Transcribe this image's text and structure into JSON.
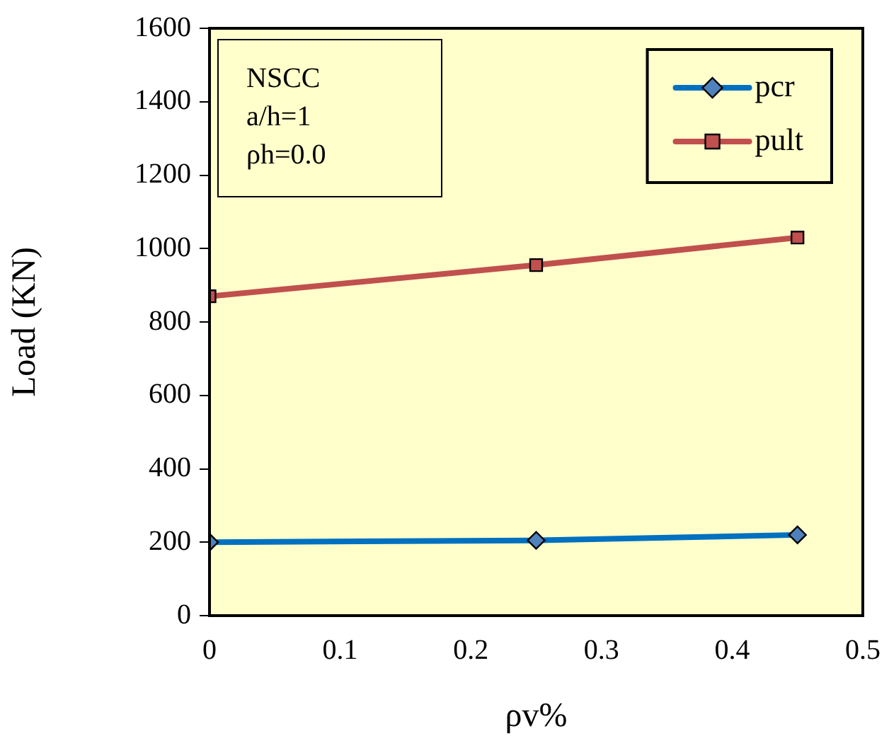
{
  "chart_data": {
    "type": "line",
    "xlabel": "ρv%",
    "ylabel": "Load (KN)",
    "x": [
      0,
      0.25,
      0.45
    ],
    "series": [
      {
        "name": "pcr",
        "color": "#0070c0",
        "marker": "diamond",
        "values": [
          200,
          205,
          220
        ]
      },
      {
        "name": "pult",
        "color": "#c0504d",
        "marker": "square",
        "values": [
          870,
          955,
          1030
        ]
      }
    ],
    "xlim": [
      0,
      0.5
    ],
    "xticks": [
      0,
      0.1,
      0.2,
      0.3,
      0.4,
      0.5
    ],
    "ylim": [
      0,
      1600
    ],
    "yticks": [
      0,
      200,
      400,
      600,
      800,
      1000,
      1200,
      1400,
      1600
    ],
    "grid": false,
    "legend": "top right",
    "line_style": "solid",
    "annotations": [
      "NSCC",
      "a/h=1",
      "ρh=0.0"
    ]
  }
}
